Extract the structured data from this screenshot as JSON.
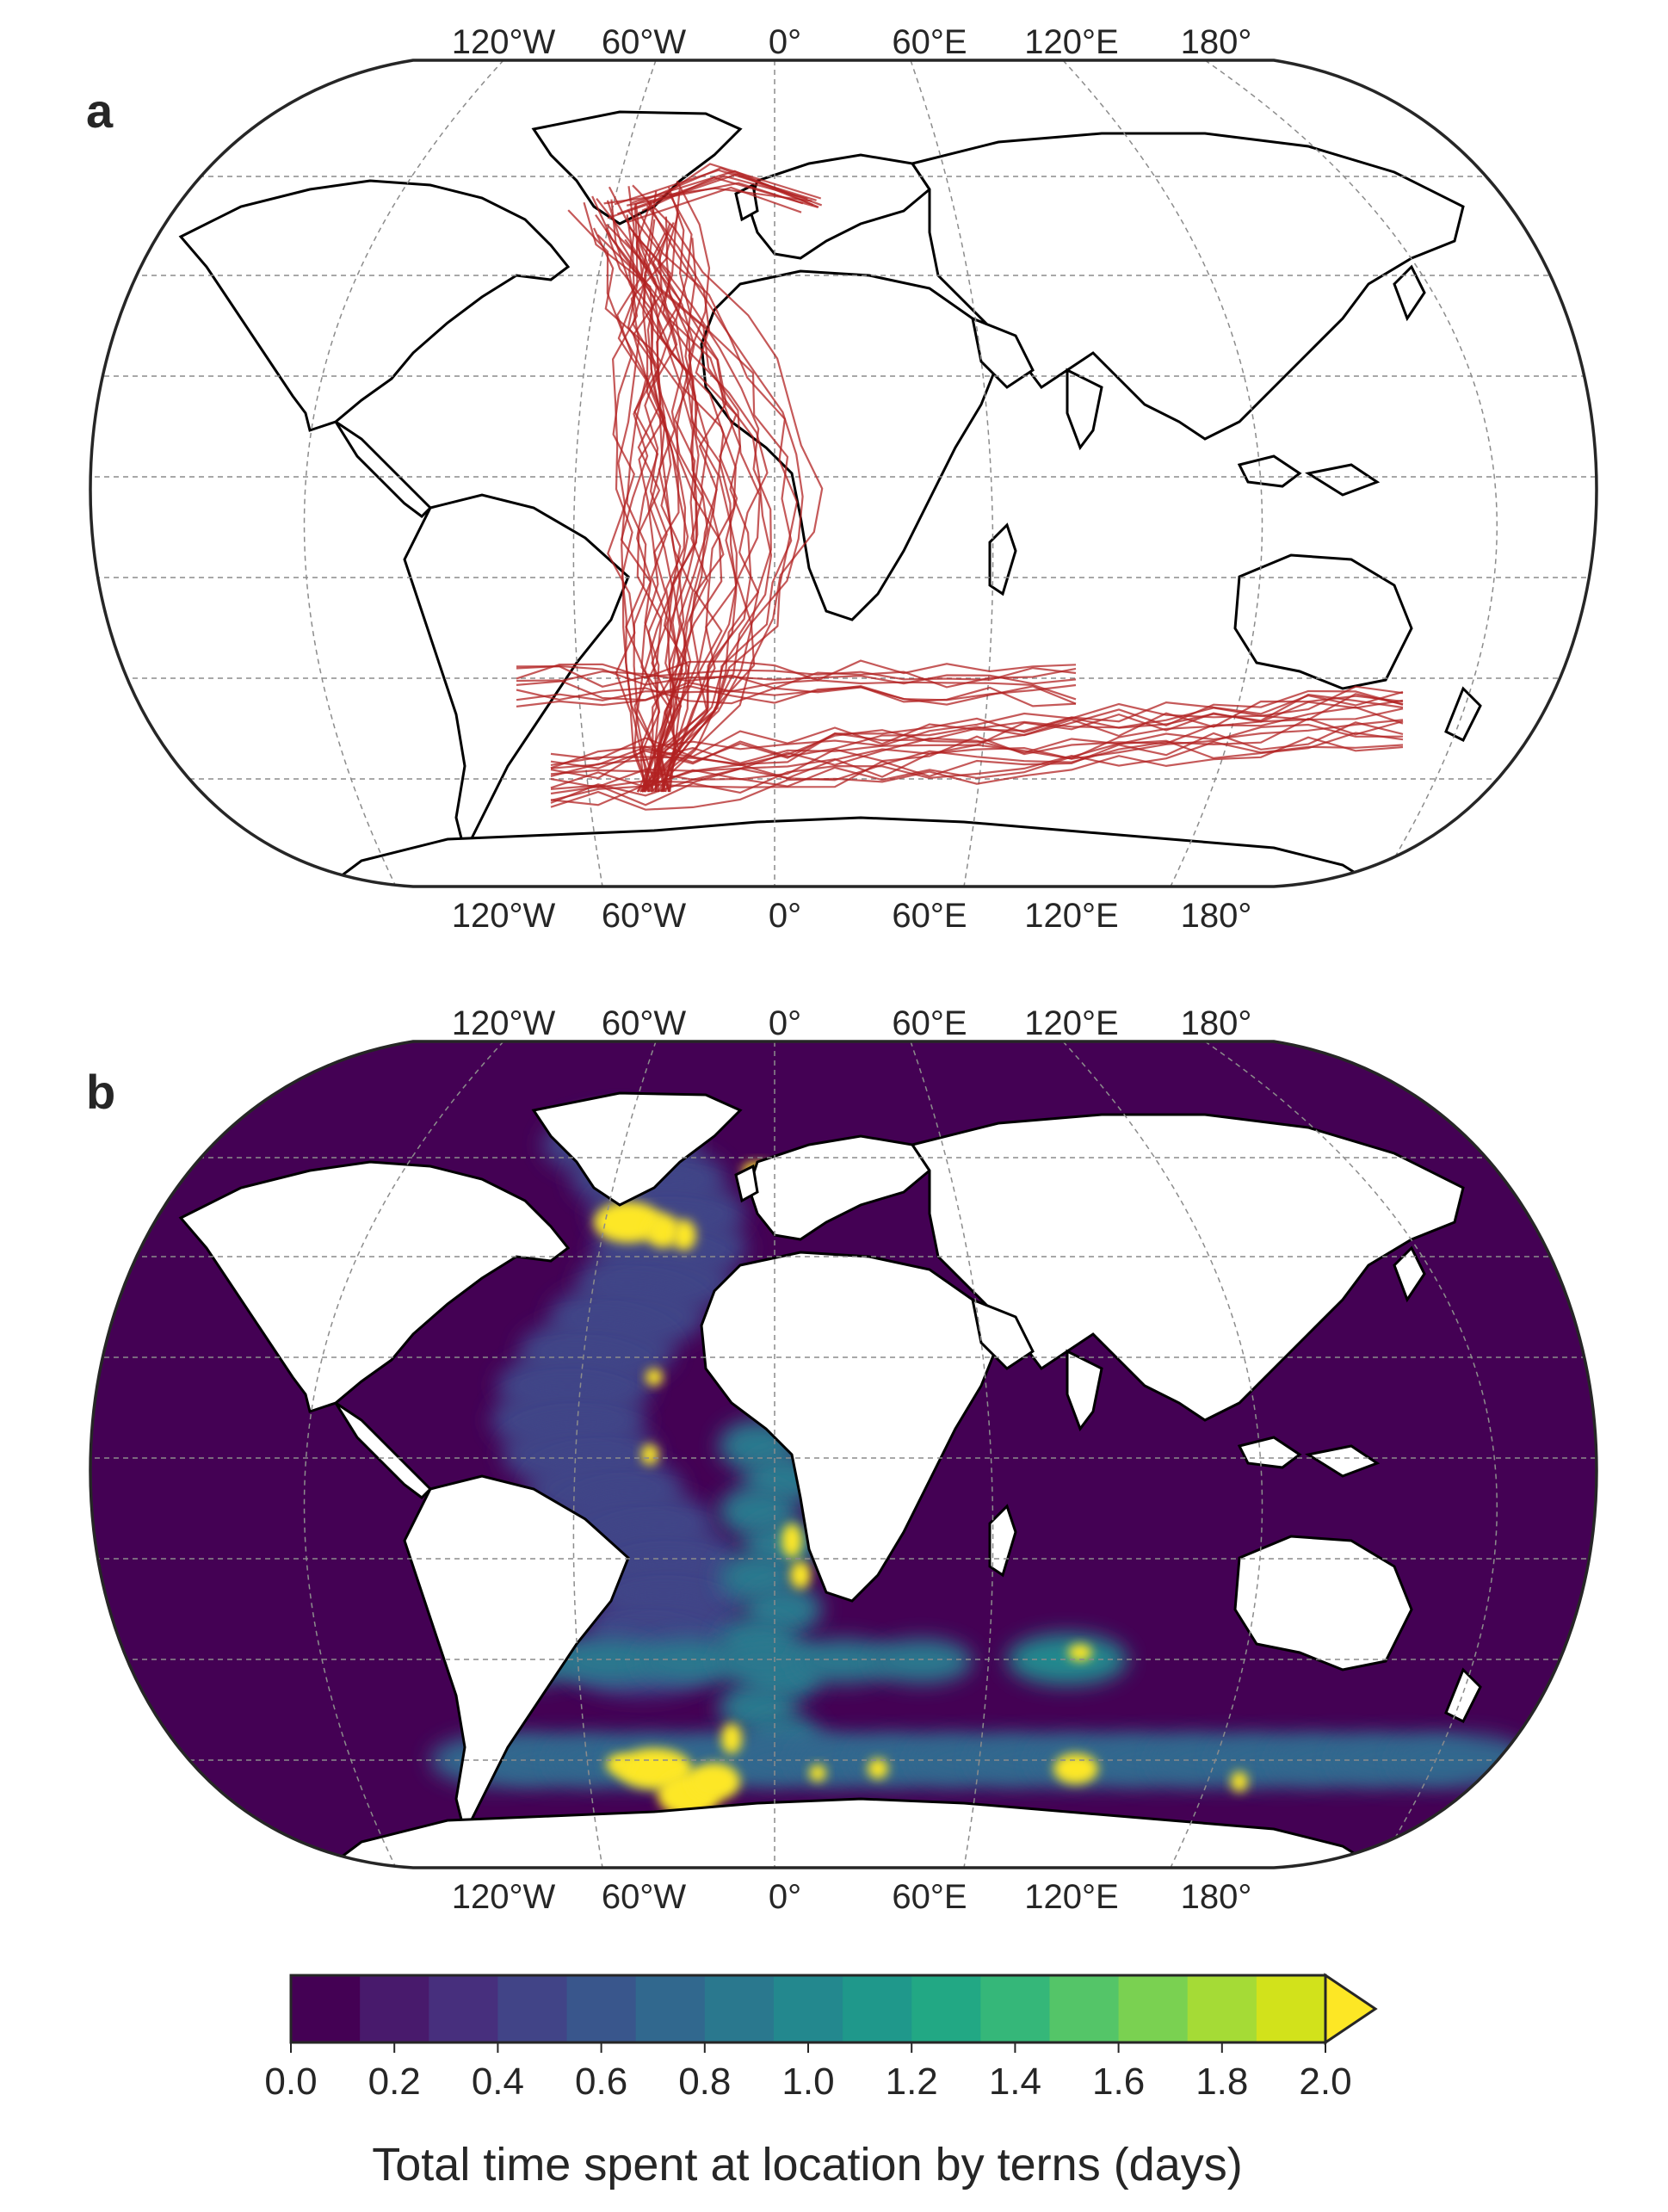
{
  "panels": [
    {
      "letter": "a",
      "kind": "tracks",
      "top_lon_labels": [
        "120°W",
        "60°W",
        "0°",
        "60°E",
        "120°E",
        "180°"
      ],
      "bottom_lon_labels": [
        "120°W",
        "60°W",
        "0°",
        "60°E",
        "120°E",
        "180°"
      ]
    },
    {
      "letter": "b",
      "kind": "density",
      "top_lon_labels": [
        "120°W",
        "60°W",
        "0°",
        "60°E",
        "120°E",
        "180°"
      ],
      "bottom_lon_labels": [
        "120°W",
        "60°W",
        "0°",
        "60°E",
        "120°E",
        "180°"
      ]
    }
  ],
  "colorbar": {
    "label": "Total time spent at location by terns (days)",
    "ticks": [
      "0.0",
      "0.2",
      "0.4",
      "0.6",
      "0.8",
      "1.0",
      "1.2",
      "1.4",
      "1.6",
      "1.8",
      "2.0"
    ],
    "min": 0.0,
    "max": 2.0,
    "extend": "max",
    "colors": [
      "#440154",
      "#481a6c",
      "#472f7d",
      "#414487",
      "#39568c",
      "#31688e",
      "#2a788e",
      "#23888e",
      "#1f988b",
      "#22a884",
      "#35b779",
      "#54c568",
      "#7ad151",
      "#a5db36",
      "#d2e21b",
      "#fde725"
    ]
  },
  "style": {
    "track_color": "#b22222",
    "land_fill_b": "#ffffff",
    "ocean_fill_b": "#440154",
    "grid_color": "#8c8c8c"
  }
}
